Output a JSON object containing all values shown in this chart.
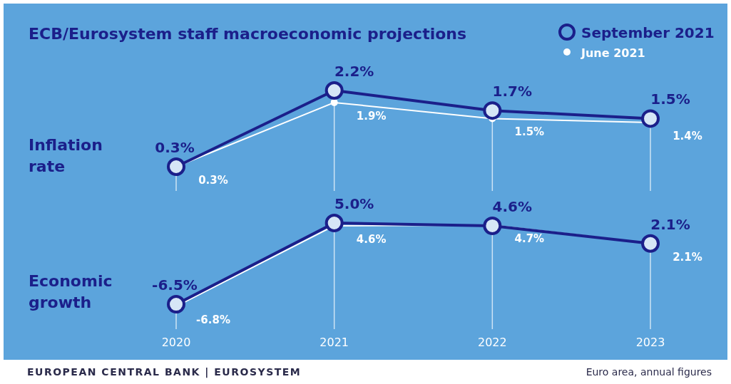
{
  "chart_data": [
    {
      "type": "line",
      "title": "ECB/Eurosystem staff macroeconomic projections",
      "ylabel": "Inflation rate",
      "categories": [
        "2020",
        "2021",
        "2022",
        "2023"
      ],
      "tick_labels": false,
      "grid": "x",
      "legend": "top right",
      "marker": "circle",
      "data_labels": false,
      "series": [
        {
          "name": "September 2021",
          "color": "#1b1f8a",
          "values": [
            0.3,
            2.2,
            1.7,
            1.5
          ],
          "value_labels": [
            "0.3%",
            "2.2%",
            "1.7%",
            "1.5%"
          ]
        },
        {
          "name": "June 2021",
          "color": "#ffffff",
          "values": [
            0.3,
            1.9,
            1.5,
            1.4
          ],
          "value_labels": [
            "0.3%",
            "1.9%",
            "1.5%",
            "1.4%"
          ]
        }
      ]
    },
    {
      "type": "line",
      "ylabel": "Economic growth",
      "categories": [
        "2020",
        "2021",
        "2022",
        "2023"
      ],
      "tick_labels": "x",
      "grid": "x",
      "legend": false,
      "marker": "circle",
      "data_labels": false,
      "series": [
        {
          "color": "#1b1f8a",
          "values": [
            -6.5,
            5.0,
            4.6,
            2.1
          ],
          "value_labels": [
            "-6.5%",
            "5.0%",
            "4.6%",
            "2.1%"
          ]
        },
        {
          "color": "#ffffff",
          "values": [
            -6.8,
            4.6,
            4.7,
            2.1
          ],
          "value_labels": [
            "-6.8%",
            "4.6%",
            "4.7%",
            "2.1%"
          ]
        }
      ],
      "annotations": [
        "EUROPEAN CENTRAL BANK | EUROSYSTEM",
        "Euro area, annual figures"
      ]
    }
  ]
}
